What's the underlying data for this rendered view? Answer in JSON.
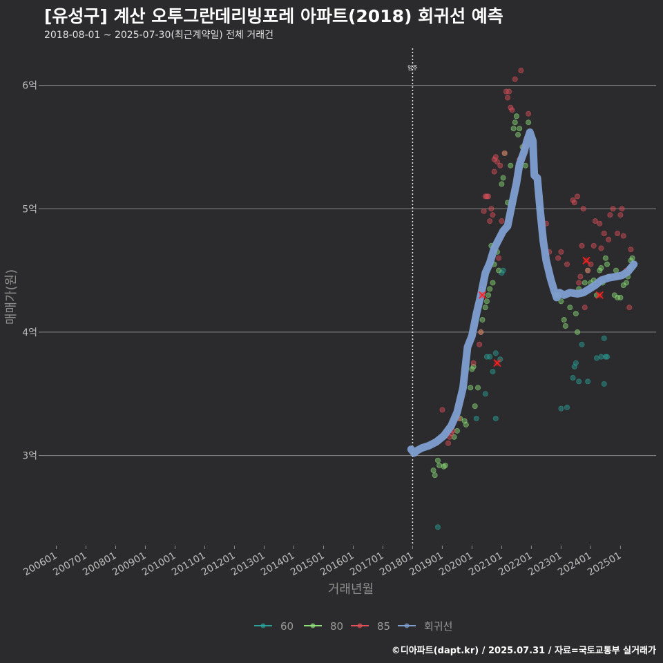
{
  "header": {
    "title": "[유성구] 계산 오투그란데리빙포레 아파트(2018) 회귀선 예측",
    "subtitle": "2018-08-01 ~ 2025-07-30(최근계약일) 전체 거래건"
  },
  "footer": {
    "credit": "©디아파트(dapt.kr) / 2025.07.31 / 자료=국토교통부 실거래가"
  },
  "colors": {
    "background": "#2b2b2d",
    "grid": "#8a8a8a",
    "s60": "#2aa198",
    "s80": "#8fe07a",
    "s85": "#e0505a",
    "regression": "#7f9fd1",
    "highlight": "#ff2020"
  },
  "chart_data": {
    "type": "scatter",
    "title": "[유성구] 계산 오투그란데리빙포레 아파트(2018) 회귀선 예측",
    "xlabel": "거래년월",
    "ylabel": "매매가(원)",
    "x_range": [
      2005.5,
      2026.2
    ],
    "ylim": [
      2.27,
      6.3
    ],
    "yticks": [
      3,
      4,
      5,
      6
    ],
    "ytick_labels": [
      "3억",
      "4억",
      "5억",
      "6억"
    ],
    "xticks": [
      2006,
      2007,
      2008,
      2009,
      2010,
      2011,
      2012,
      2013,
      2014,
      2015,
      2016,
      2017,
      2018,
      2019,
      2020,
      2021,
      2022,
      2023,
      2024,
      2025
    ],
    "xtick_labels": [
      "200601",
      "200701",
      "200801",
      "200901",
      "201001",
      "201101",
      "201201",
      "201301",
      "201401",
      "201501",
      "201601",
      "201701",
      "201801",
      "201901",
      "202001",
      "202101",
      "202201",
      "202301",
      "202401",
      "202501"
    ],
    "annotation": {
      "x": 2018.0,
      "label": "입주"
    },
    "legend": {
      "position": "bottom",
      "entries": [
        "60",
        "80",
        "85",
        "회귀선"
      ]
    },
    "series": [
      {
        "name": "60",
        "points": [
          [
            2018.85,
            2.42
          ],
          [
            2020.15,
            3.3
          ],
          [
            2020.45,
            3.5
          ],
          [
            2020.5,
            3.8
          ],
          [
            2020.6,
            3.8
          ],
          [
            2020.7,
            3.68
          ],
          [
            2020.8,
            3.83
          ],
          [
            2020.8,
            3.3
          ],
          [
            2020.95,
            3.78
          ],
          [
            2021.0,
            4.48
          ],
          [
            2021.05,
            4.5
          ],
          [
            2023.0,
            3.38
          ],
          [
            2023.2,
            3.39
          ],
          [
            2023.4,
            3.63
          ],
          [
            2023.45,
            3.72
          ],
          [
            2023.5,
            3.75
          ],
          [
            2023.6,
            3.6
          ],
          [
            2023.7,
            3.9
          ],
          [
            2023.9,
            3.6
          ],
          [
            2024.2,
            3.79
          ],
          [
            2024.35,
            3.8
          ],
          [
            2024.45,
            3.95
          ],
          [
            2024.5,
            3.8
          ],
          [
            2024.55,
            3.8
          ],
          [
            2024.45,
            3.58
          ]
        ]
      },
      {
        "name": "80",
        "points": [
          [
            2018.7,
            2.88
          ],
          [
            2018.75,
            2.84
          ],
          [
            2018.85,
            2.96
          ],
          [
            2018.9,
            2.92
          ],
          [
            2019.05,
            2.91
          ],
          [
            2019.1,
            2.92
          ],
          [
            2019.4,
            3.15
          ],
          [
            2019.5,
            3.2
          ],
          [
            2019.6,
            3.3
          ],
          [
            2019.75,
            3.28
          ],
          [
            2019.8,
            3.25
          ],
          [
            2019.95,
            3.55
          ],
          [
            2020.0,
            3.7
          ],
          [
            2020.05,
            3.72
          ],
          [
            2020.1,
            3.4
          ],
          [
            2020.2,
            3.55
          ],
          [
            2020.3,
            4.0
          ],
          [
            2020.35,
            4.1
          ],
          [
            2020.45,
            4.2
          ],
          [
            2020.5,
            4.25
          ],
          [
            2020.55,
            4.3
          ],
          [
            2020.6,
            4.35
          ],
          [
            2020.65,
            4.7
          ],
          [
            2020.7,
            4.4
          ],
          [
            2020.75,
            4.55
          ],
          [
            2020.85,
            4.65
          ],
          [
            2020.9,
            4.5
          ],
          [
            2021.0,
            5.2
          ],
          [
            2021.05,
            5.25
          ],
          [
            2021.1,
            5.45
          ],
          [
            2021.2,
            5.05
          ],
          [
            2021.3,
            5.35
          ],
          [
            2021.4,
            5.65
          ],
          [
            2021.45,
            5.7
          ],
          [
            2021.5,
            5.75
          ],
          [
            2021.55,
            5.6
          ],
          [
            2021.6,
            5.65
          ],
          [
            2021.7,
            5.5
          ],
          [
            2021.8,
            5.35
          ],
          [
            2021.9,
            5.7
          ],
          [
            2022.3,
            5.0
          ],
          [
            2022.8,
            4.3
          ],
          [
            2022.9,
            4.3
          ],
          [
            2023.0,
            4.25
          ],
          [
            2023.1,
            4.1
          ],
          [
            2023.15,
            4.05
          ],
          [
            2023.3,
            4.2
          ],
          [
            2023.5,
            4.15
          ],
          [
            2023.55,
            4.0
          ],
          [
            2023.6,
            4.35
          ],
          [
            2023.8,
            4.4
          ],
          [
            2023.9,
            4.5
          ],
          [
            2024.0,
            4.4
          ],
          [
            2024.1,
            4.42
          ],
          [
            2024.2,
            4.3
          ],
          [
            2024.3,
            4.5
          ],
          [
            2024.35,
            4.52
          ],
          [
            2024.4,
            4.4
          ],
          [
            2024.5,
            4.6
          ],
          [
            2024.55,
            4.55
          ],
          [
            2024.6,
            4.45
          ],
          [
            2024.8,
            4.3
          ],
          [
            2024.85,
            4.5
          ],
          [
            2024.9,
            4.28
          ],
          [
            2025.0,
            4.28
          ],
          [
            2025.1,
            4.38
          ],
          [
            2025.2,
            4.4
          ],
          [
            2025.25,
            4.45
          ],
          [
            2025.3,
            4.52
          ],
          [
            2025.35,
            4.58
          ],
          [
            2025.4,
            4.6
          ]
        ]
      },
      {
        "name": "85",
        "points": [
          [
            2019.0,
            3.37
          ],
          [
            2019.2,
            3.1
          ],
          [
            2019.25,
            3.15
          ],
          [
            2019.3,
            3.18
          ],
          [
            2019.35,
            3.2
          ],
          [
            2019.55,
            3.3
          ],
          [
            2020.05,
            3.75
          ],
          [
            2020.25,
            3.9
          ],
          [
            2020.3,
            4.0
          ],
          [
            2020.35,
            4.35
          ],
          [
            2020.4,
            4.98
          ],
          [
            2020.45,
            5.1
          ],
          [
            2020.5,
            5.1
          ],
          [
            2020.55,
            5.1
          ],
          [
            2020.6,
            4.9
          ],
          [
            2020.65,
            5.0
          ],
          [
            2020.7,
            4.95
          ],
          [
            2020.75,
            5.3
          ],
          [
            2020.75,
            5.4
          ],
          [
            2020.8,
            5.42
          ],
          [
            2020.85,
            5.38
          ],
          [
            2020.9,
            4.6
          ],
          [
            2020.95,
            5.35
          ],
          [
            2021.0,
            4.9
          ],
          [
            2021.1,
            5.45
          ],
          [
            2021.15,
            5.95
          ],
          [
            2021.2,
            5.9
          ],
          [
            2021.25,
            5.95
          ],
          [
            2021.3,
            5.82
          ],
          [
            2021.35,
            5.8
          ],
          [
            2021.45,
            6.05
          ],
          [
            2021.6,
            5.4
          ],
          [
            2021.65,
            6.12
          ],
          [
            2021.75,
            5.5
          ],
          [
            2021.9,
            5.77
          ],
          [
            2022.5,
            4.88
          ],
          [
            2022.6,
            4.65
          ],
          [
            2022.9,
            4.6
          ],
          [
            2023.0,
            4.65
          ],
          [
            2023.2,
            4.55
          ],
          [
            2023.4,
            5.07
          ],
          [
            2023.45,
            5.05
          ],
          [
            2023.55,
            5.1
          ],
          [
            2023.6,
            4.4
          ],
          [
            2023.65,
            4.45
          ],
          [
            2023.7,
            4.7
          ],
          [
            2023.75,
            5.0
          ],
          [
            2023.8,
            4.2
          ],
          [
            2023.9,
            4.5
          ],
          [
            2024.0,
            4.55
          ],
          [
            2024.1,
            4.7
          ],
          [
            2024.15,
            4.9
          ],
          [
            2024.3,
            4.88
          ],
          [
            2024.35,
            4.68
          ],
          [
            2024.45,
            4.8
          ],
          [
            2024.6,
            4.75
          ],
          [
            2024.65,
            4.95
          ],
          [
            2024.75,
            5.0
          ],
          [
            2024.85,
            4.45
          ],
          [
            2024.9,
            4.8
          ],
          [
            2025.0,
            4.95
          ],
          [
            2025.05,
            5.0
          ],
          [
            2025.1,
            4.78
          ],
          [
            2025.2,
            4.5
          ],
          [
            2025.3,
            4.2
          ],
          [
            2025.35,
            4.67
          ]
        ]
      }
    ],
    "highlights": [
      [
        2020.35,
        4.3
      ],
      [
        2020.85,
        3.75
      ],
      [
        2023.85,
        4.58
      ],
      [
        2024.3,
        4.3
      ]
    ],
    "regression": {
      "name": "회귀선",
      "points": [
        [
          2017.95,
          3.05
        ],
        [
          2018.05,
          3.02
        ],
        [
          2018.15,
          3.04
        ],
        [
          2018.3,
          3.06
        ],
        [
          2018.55,
          3.08
        ],
        [
          2018.8,
          3.11
        ],
        [
          2019.05,
          3.16
        ],
        [
          2019.3,
          3.24
        ],
        [
          2019.5,
          3.35
        ],
        [
          2019.7,
          3.55
        ],
        [
          2019.85,
          3.88
        ],
        [
          2020.0,
          3.97
        ],
        [
          2020.15,
          4.15
        ],
        [
          2020.3,
          4.3
        ],
        [
          2020.45,
          4.48
        ],
        [
          2020.6,
          4.56
        ],
        [
          2020.75,
          4.68
        ],
        [
          2020.9,
          4.75
        ],
        [
          2021.05,
          4.82
        ],
        [
          2021.2,
          4.86
        ],
        [
          2021.35,
          5.04
        ],
        [
          2021.5,
          5.21
        ],
        [
          2021.6,
          5.36
        ],
        [
          2021.75,
          5.46
        ],
        [
          2021.85,
          5.55
        ],
        [
          2021.95,
          5.62
        ],
        [
          2022.05,
          5.55
        ],
        [
          2022.1,
          5.27
        ],
        [
          2022.2,
          5.25
        ],
        [
          2022.3,
          4.98
        ],
        [
          2022.4,
          4.74
        ],
        [
          2022.5,
          4.58
        ],
        [
          2022.65,
          4.43
        ],
        [
          2022.75,
          4.35
        ],
        [
          2022.85,
          4.28
        ],
        [
          2022.95,
          4.32
        ],
        [
          2023.1,
          4.3
        ],
        [
          2023.3,
          4.32
        ],
        [
          2023.55,
          4.31
        ],
        [
          2023.75,
          4.32
        ],
        [
          2023.95,
          4.35
        ],
        [
          2024.15,
          4.38
        ],
        [
          2024.35,
          4.42
        ],
        [
          2024.6,
          4.44
        ],
        [
          2024.85,
          4.45
        ],
        [
          2025.05,
          4.46
        ],
        [
          2025.25,
          4.49
        ],
        [
          2025.45,
          4.55
        ]
      ]
    }
  }
}
